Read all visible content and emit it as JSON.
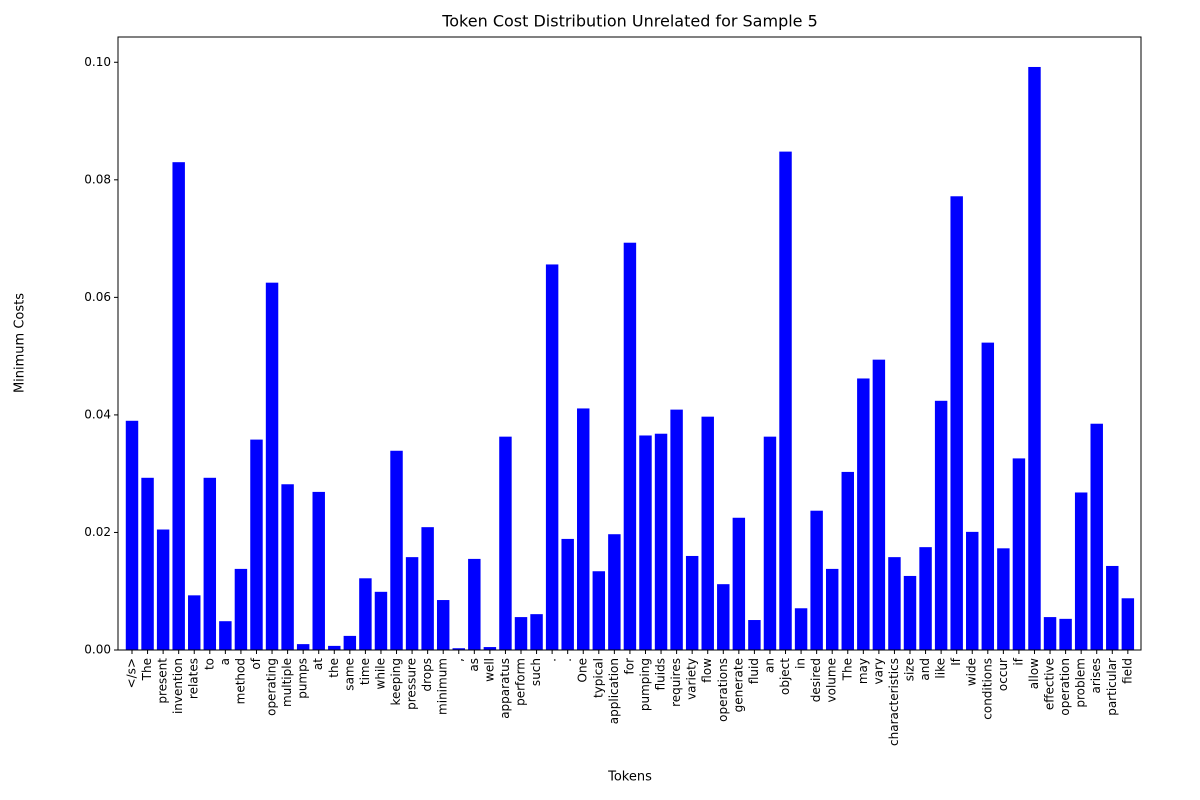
{
  "chart_data": {
    "type": "bar",
    "title": "Token Cost Distribution Unrelated for Sample 5",
    "xlabel": "Tokens",
    "ylabel": "Minimum Costs",
    "color": "#0000ff",
    "categories": [
      "</s>",
      "The",
      "present",
      "invention",
      "relates",
      "to",
      "a",
      "method",
      "of",
      "operating",
      "multiple",
      "pumps",
      "at",
      "the",
      "same",
      "time",
      "while",
      "keeping",
      "pressure",
      "drops",
      "minimum",
      ",",
      "as",
      "well",
      "apparatus",
      "perform",
      "such",
      ".",
      ".",
      "One",
      "typical",
      "application",
      "for",
      "pumping",
      "fluids",
      "requires",
      "variety",
      "flow",
      "operations",
      "generate",
      "fluid",
      "an",
      "object",
      "in",
      "desired",
      "volume",
      "The",
      "may",
      "vary",
      "characteristics",
      "size",
      "and",
      "like",
      "If",
      "wide",
      "conditions",
      "occur",
      "if",
      "allow",
      "effective",
      "operation",
      "problem",
      "arises",
      "particular",
      "field"
    ],
    "values": [
      0.039,
      0.0293,
      0.0205,
      0.083,
      0.0093,
      0.0293,
      0.0049,
      0.0138,
      0.0358,
      0.0625,
      0.0282,
      0.001,
      0.0269,
      0.0007,
      0.0024,
      0.0122,
      0.0099,
      0.0339,
      0.0158,
      0.0209,
      0.0085,
      0.0003,
      0.0155,
      0.0005,
      0.0363,
      0.0056,
      0.0061,
      0.0656,
      0.0189,
      0.0411,
      0.0134,
      0.0197,
      0.0693,
      0.0365,
      0.0368,
      0.0409,
      0.016,
      0.0397,
      0.0112,
      0.0225,
      0.0051,
      0.0363,
      0.0848,
      0.0071,
      0.0237,
      0.0138,
      0.0303,
      0.0462,
      0.0494,
      0.0158,
      0.0126,
      0.0175,
      0.0424,
      0.0772,
      0.0201,
      0.0523,
      0.0173,
      0.0326,
      0.0992,
      0.0056,
      0.0053,
      0.0268,
      0.0385,
      0.0143,
      0.0088
    ],
    "ylim": [
      0,
      0.1043
    ],
    "yticks": [
      {
        "value": 0,
        "label": "0.00"
      },
      {
        "value": 0.02,
        "label": "0.02"
      },
      {
        "value": 0.04,
        "label": "0.04"
      },
      {
        "value": 0.06,
        "label": "0.06"
      },
      {
        "value": 0.08,
        "label": "0.08"
      },
      {
        "value": 0.1,
        "label": "0.10"
      }
    ],
    "grid": false
  }
}
